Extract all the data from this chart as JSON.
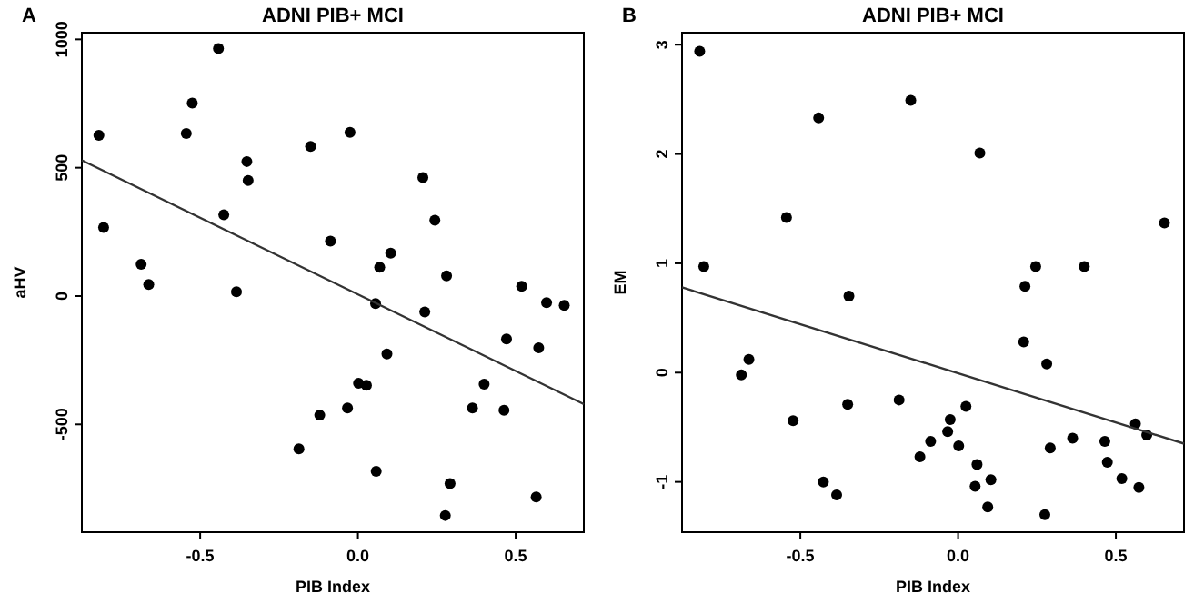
{
  "chart_data": [
    {
      "type": "scatter",
      "title": "ADNI PIB+ MCI",
      "xlabel": "PIB Index",
      "ylabel": "aHV",
      "annotations": [
        "A"
      ],
      "marker": "circle",
      "xlim": [
        -0.875,
        0.716
      ],
      "ylim": [
        -920,
        1026
      ],
      "xticks": [
        {
          "value": -0.5,
          "label": "-0.5"
        },
        {
          "value": 0,
          "label": "0.0"
        },
        {
          "value": 0.5,
          "label": "0.5"
        }
      ],
      "yticks": [
        -500,
        0,
        500,
        1000
      ],
      "series": [
        {
          "color": "#000000",
          "x": [
            -0.821,
            -0.806,
            -0.442,
            -0.525,
            -0.544,
            -0.687,
            -0.663,
            -0.352,
            -0.348,
            -0.425,
            -0.385,
            -0.15,
            -0.025,
            -0.087,
            0.206,
            0.244,
            0.069,
            0.104,
            0.281,
            0.519,
            0.056,
            0.212,
            0.598,
            0.654,
            0.471,
            0.573,
            0.092,
            0.002,
            0.027,
            0.4,
            0.363,
            0.463,
            -0.033,
            -0.121,
            -0.187,
            0.058,
            0.292,
            0.565,
            0.277
          ],
          "values": [
            626,
            267,
            964,
            752,
            633,
            124,
            45,
            524,
            450,
            317,
            17,
            583,
            638,
            214,
            462,
            295,
            112,
            167,
            79,
            38,
            -29,
            -62,
            -26,
            -36,
            -167,
            -202,
            -226,
            -340,
            -348,
            -343,
            -436,
            -445,
            -436,
            -464,
            -595,
            -683,
            -731,
            -783,
            -855
          ]
        },
        {
          "type": "line",
          "marker": "none",
          "color": "#333333",
          "x": [
            -0.875,
            0.716
          ],
          "values": [
            529,
            -421
          ]
        }
      ]
    },
    {
      "type": "scatter",
      "title": "ADNI PIB+ MCI",
      "xlabel": "PIB Index",
      "ylabel": "EM",
      "annotations": [
        "B"
      ],
      "marker": "circle",
      "xlim": [
        -0.875,
        0.716
      ],
      "ylim": [
        -1.46,
        3.11
      ],
      "xticks": [
        {
          "value": -0.5,
          "label": "-0.5"
        },
        {
          "value": 0,
          "label": "0.0"
        },
        {
          "value": 0.5,
          "label": "0.5"
        }
      ],
      "yticks": [
        -1,
        0,
        1,
        2,
        3
      ],
      "series": [
        {
          "color": "#000000",
          "x": [
            -0.819,
            -0.806,
            -0.442,
            -0.544,
            -0.15,
            0.069,
            -0.346,
            0.212,
            0.246,
            0.4,
            0.654,
            -0.663,
            -0.687,
            0.208,
            0.281,
            -0.35,
            -0.187,
            0.025,
            -0.523,
            -0.025,
            -0.033,
            -0.087,
            0.002,
            -0.121,
            0.06,
            0.104,
            0.054,
            0.094,
            0.275,
            0.292,
            0.363,
            0.465,
            0.473,
            0.519,
            0.573,
            0.562,
            0.598,
            -0.427,
            -0.385
          ],
          "values": [
            2.94,
            0.97,
            2.33,
            1.42,
            2.49,
            2.01,
            0.7,
            0.79,
            0.97,
            0.97,
            1.37,
            0.12,
            -0.02,
            0.28,
            0.08,
            -0.29,
            -0.25,
            -0.31,
            -0.44,
            -0.43,
            -0.54,
            -0.63,
            -0.67,
            -0.77,
            -0.84,
            -0.98,
            -1.04,
            -1.23,
            -1.3,
            -0.69,
            -0.6,
            -0.63,
            -0.82,
            -0.97,
            -1.05,
            -0.47,
            -0.57,
            -1.0,
            -1.12
          ]
        },
        {
          "type": "line",
          "marker": "none",
          "color": "#333333",
          "x": [
            -0.875,
            0.716
          ],
          "values": [
            0.78,
            -0.65
          ]
        }
      ]
    }
  ]
}
